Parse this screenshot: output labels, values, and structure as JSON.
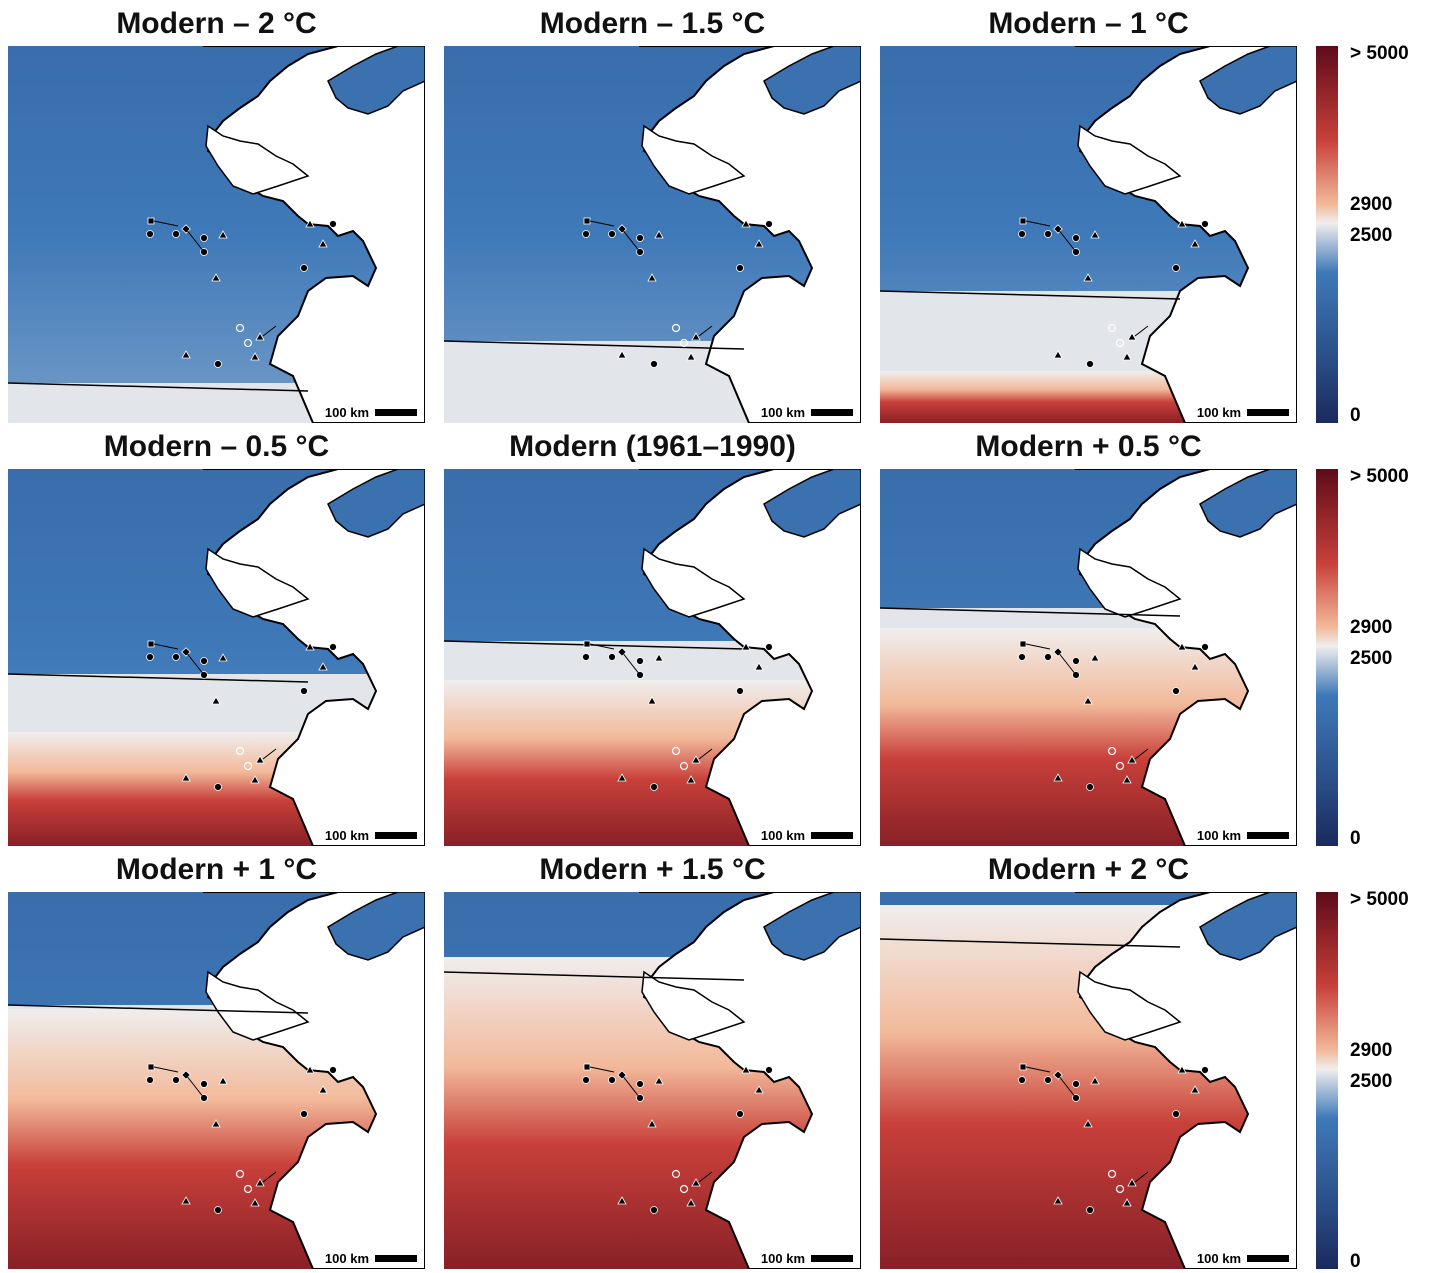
{
  "panels": [
    {
      "title": "Modern – 2 °C",
      "warm": 0.12
    },
    {
      "title": "Modern – 1.5 °C",
      "warm": 0.25
    },
    {
      "title": "Modern – 1 °C",
      "warm": 0.4
    },
    {
      "title": "Modern – 0.5 °C",
      "warm": 0.52
    },
    {
      "title": "Modern (1961–1990)",
      "warm": 0.62
    },
    {
      "title": "Modern + 0.5 °C",
      "warm": 0.72
    },
    {
      "title": "Modern + 1 °C",
      "warm": 0.8
    },
    {
      "title": "Modern + 1.5 °C",
      "warm": 0.9
    },
    {
      "title": "Modern + 2 °C",
      "warm": 1.0
    }
  ],
  "scale_label": "100 km",
  "legend": {
    "max_label": "> 5000",
    "high_label": "2900",
    "mid_label": "2500",
    "min_label": "0"
  },
  "colors": {
    "dark_blue": "#1a2a5e",
    "blue": "#3f79b8",
    "light": "#f0eeee",
    "peach": "#f2b99a",
    "red": "#c8403a",
    "dark_red": "#5e0b1a"
  }
}
